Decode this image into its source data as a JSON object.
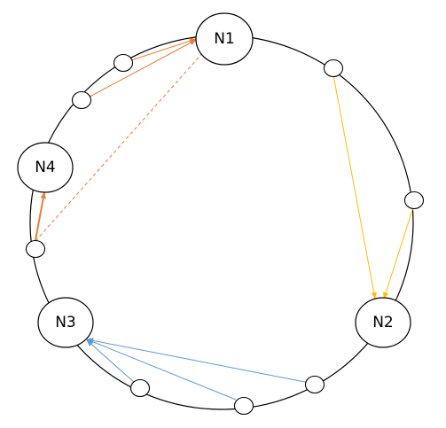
{
  "diagram": {
    "nodes": [
      {
        "id": "N1",
        "label": "N1"
      },
      {
        "id": "N2",
        "label": "N2"
      },
      {
        "id": "N3",
        "label": "N3"
      },
      {
        "id": "N4",
        "label": "N4"
      }
    ],
    "virtual_nodes": [
      "v1",
      "v2",
      "v3",
      "v4",
      "v5",
      "v6",
      "v7",
      "v8"
    ],
    "edges": [
      {
        "from": "v1",
        "to": "N1",
        "color": "#ED7D31",
        "style": "solid"
      },
      {
        "from": "v2",
        "to": "N1",
        "color": "#ED7D31",
        "style": "solid"
      },
      {
        "from": "v3",
        "to": "N1",
        "color": "#ED7D31",
        "style": "dashed"
      },
      {
        "from": "v3",
        "to": "N4",
        "color": "#ED7D31",
        "style": "solid-thick"
      },
      {
        "from": "v8",
        "to": "N2",
        "color": "#FFC000",
        "style": "solid"
      },
      {
        "from": "v7",
        "to": "N2",
        "color": "#FFC000",
        "style": "solid"
      },
      {
        "from": "v4",
        "to": "N3",
        "color": "#5B9BD5",
        "style": "solid"
      },
      {
        "from": "v5",
        "to": "N3",
        "color": "#5B9BD5",
        "style": "solid"
      },
      {
        "from": "v6",
        "to": "N3",
        "color": "#5B9BD5",
        "style": "solid"
      }
    ],
    "colors": {
      "orange": "#ED7D31",
      "yellow": "#FFC000",
      "blue": "#5B9BD5",
      "stroke": "#000000",
      "fill": "#FFFFFF"
    }
  }
}
